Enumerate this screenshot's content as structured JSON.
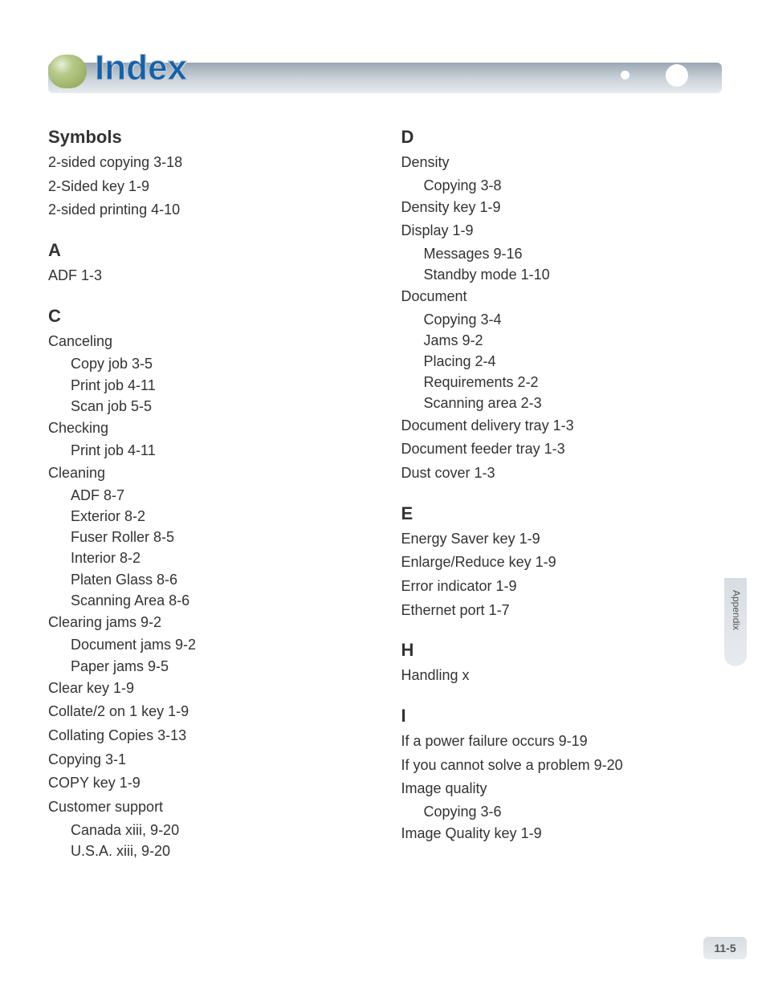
{
  "header": {
    "title": "Index"
  },
  "sideTab": {
    "label": "Appendix"
  },
  "pageNumber": "11-5",
  "leftColumn": [
    {
      "type": "section",
      "text": "Symbols"
    },
    {
      "type": "entry",
      "text": "2-sided copying  3-18"
    },
    {
      "type": "entry",
      "text": "2-Sided key  1-9"
    },
    {
      "type": "entry",
      "text": "2-sided printing  4-10"
    },
    {
      "type": "section",
      "text": "A"
    },
    {
      "type": "entry",
      "text": "ADF  1-3"
    },
    {
      "type": "section",
      "text": "C"
    },
    {
      "type": "entry",
      "text": "Canceling"
    },
    {
      "type": "subentry",
      "text": "Copy job  3-5"
    },
    {
      "type": "subentry",
      "text": "Print job  4-11"
    },
    {
      "type": "subentry",
      "text": "Scan job  5-5"
    },
    {
      "type": "entry",
      "text": "Checking"
    },
    {
      "type": "subentry",
      "text": "Print job  4-11"
    },
    {
      "type": "entry",
      "text": "Cleaning"
    },
    {
      "type": "subentry",
      "text": "ADF  8-7"
    },
    {
      "type": "subentry",
      "text": "Exterior  8-2"
    },
    {
      "type": "subentry",
      "text": "Fuser Roller  8-5"
    },
    {
      "type": "subentry",
      "text": "Interior  8-2"
    },
    {
      "type": "subentry",
      "text": "Platen Glass  8-6"
    },
    {
      "type": "subentry",
      "text": "Scanning Area  8-6"
    },
    {
      "type": "entry",
      "text": "Clearing jams  9-2"
    },
    {
      "type": "subentry",
      "text": "Document jams  9-2"
    },
    {
      "type": "subentry",
      "text": "Paper jams  9-5"
    },
    {
      "type": "entry",
      "text": "Clear key  1-9"
    },
    {
      "type": "entry",
      "text": "Collate/2 on 1 key  1-9"
    },
    {
      "type": "entry",
      "text": "Collating Copies  3-13"
    },
    {
      "type": "entry",
      "text": "Copying  3-1"
    },
    {
      "type": "entry",
      "text": "COPY key  1-9"
    },
    {
      "type": "entry",
      "text": "Customer support"
    },
    {
      "type": "subentry",
      "text": "Canada  xiii, 9-20"
    },
    {
      "type": "subentry",
      "text": "U.S.A.  xiii, 9-20"
    }
  ],
  "rightColumn": [
    {
      "type": "section",
      "text": "D"
    },
    {
      "type": "entry",
      "text": "Density"
    },
    {
      "type": "subentry",
      "text": "Copying  3-8"
    },
    {
      "type": "entry",
      "text": "Density key  1-9"
    },
    {
      "type": "entry",
      "text": "Display  1-9"
    },
    {
      "type": "subentry",
      "text": "Messages  9-16"
    },
    {
      "type": "subentry",
      "text": "Standby mode  1-10"
    },
    {
      "type": "entry",
      "text": "Document"
    },
    {
      "type": "subentry",
      "text": "Copying  3-4"
    },
    {
      "type": "subentry",
      "text": "Jams  9-2"
    },
    {
      "type": "subentry",
      "text": "Placing  2-4"
    },
    {
      "type": "subentry",
      "text": "Requirements  2-2"
    },
    {
      "type": "subentry",
      "text": "Scanning area  2-3"
    },
    {
      "type": "entry",
      "text": "Document delivery tray  1-3"
    },
    {
      "type": "entry",
      "text": "Document feeder tray  1-3"
    },
    {
      "type": "entry",
      "text": "Dust cover  1-3"
    },
    {
      "type": "section",
      "text": "E"
    },
    {
      "type": "entry",
      "text": "Energy Saver key  1-9"
    },
    {
      "type": "entry",
      "text": "Enlarge/Reduce key  1-9"
    },
    {
      "type": "entry",
      "text": "Error indicator  1-9"
    },
    {
      "type": "entry",
      "text": "Ethernet port  1-7"
    },
    {
      "type": "section",
      "text": "H"
    },
    {
      "type": "entry",
      "text": "Handling  x"
    },
    {
      "type": "section",
      "text": "I"
    },
    {
      "type": "entry",
      "text": "If a power failure occurs  9-19"
    },
    {
      "type": "entry",
      "text": "If you cannot solve a problem  9-20"
    },
    {
      "type": "entry",
      "text": "Image quality"
    },
    {
      "type": "subentry",
      "text": "Copying  3-6"
    },
    {
      "type": "entry",
      "text": "Image Quality key  1-9"
    }
  ]
}
